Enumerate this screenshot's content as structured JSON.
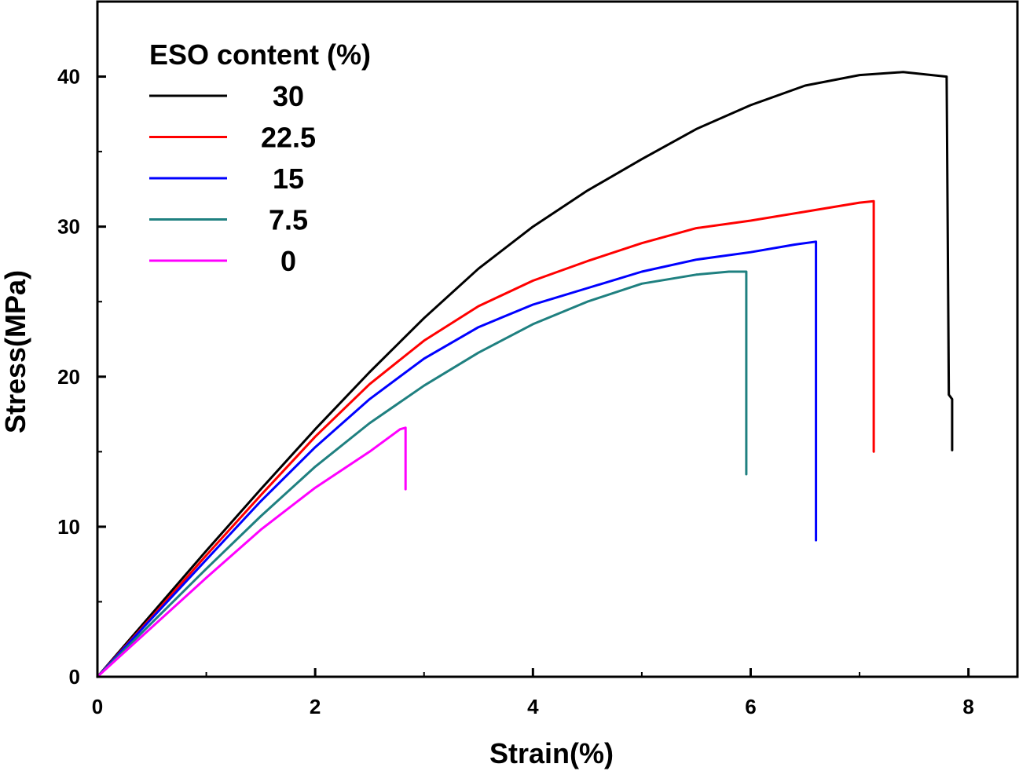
{
  "chart_data": {
    "type": "line",
    "xlabel": "Strain(%)",
    "ylabel": "Stress(MPa)",
    "xlim": [
      0,
      8.45
    ],
    "ylim": [
      0,
      45
    ],
    "x_ticks": [
      0,
      2,
      4,
      6,
      8
    ],
    "y_ticks": [
      0,
      10,
      20,
      30,
      40
    ],
    "grid": false,
    "legend": {
      "title": "ESO content (%)",
      "position": "top-left"
    },
    "series": [
      {
        "name": "30",
        "color": "#000000",
        "points": [
          [
            0,
            0
          ],
          [
            0.5,
            4.2
          ],
          [
            1,
            8.4
          ],
          [
            1.5,
            12.5
          ],
          [
            2,
            16.5
          ],
          [
            2.5,
            20.3
          ],
          [
            3,
            23.9
          ],
          [
            3.5,
            27.2
          ],
          [
            4,
            30.0
          ],
          [
            4.5,
            32.4
          ],
          [
            5,
            34.5
          ],
          [
            5.5,
            36.5
          ],
          [
            6,
            38.1
          ],
          [
            6.5,
            39.4
          ],
          [
            7,
            40.1
          ],
          [
            7.4,
            40.3
          ],
          [
            7.8,
            40.0
          ],
          [
            7.82,
            18.8
          ],
          [
            7.85,
            18.5
          ],
          [
            7.85,
            15.1
          ]
        ]
      },
      {
        "name": "22.5",
        "color": "#ff0000",
        "points": [
          [
            0,
            0
          ],
          [
            0.5,
            4.0
          ],
          [
            1,
            8.1
          ],
          [
            1.5,
            12.1
          ],
          [
            2,
            16.0
          ],
          [
            2.5,
            19.5
          ],
          [
            3,
            22.4
          ],
          [
            3.5,
            24.7
          ],
          [
            4,
            26.4
          ],
          [
            4.5,
            27.7
          ],
          [
            5,
            28.9
          ],
          [
            5.5,
            29.9
          ],
          [
            6,
            30.4
          ],
          [
            6.5,
            31.0
          ],
          [
            7,
            31.6
          ],
          [
            7.13,
            31.7
          ],
          [
            7.13,
            15.0
          ]
        ]
      },
      {
        "name": "15",
        "color": "#0000ff",
        "points": [
          [
            0,
            0
          ],
          [
            0.5,
            3.9
          ],
          [
            1,
            7.8
          ],
          [
            1.5,
            11.7
          ],
          [
            2,
            15.3
          ],
          [
            2.5,
            18.5
          ],
          [
            3,
            21.2
          ],
          [
            3.5,
            23.3
          ],
          [
            4,
            24.8
          ],
          [
            4.5,
            25.9
          ],
          [
            5,
            27.0
          ],
          [
            5.5,
            27.8
          ],
          [
            6,
            28.3
          ],
          [
            6.4,
            28.8
          ],
          [
            6.6,
            29.0
          ],
          [
            6.6,
            9.1
          ]
        ]
      },
      {
        "name": "7.5",
        "color": "#1f8080",
        "points": [
          [
            0,
            0
          ],
          [
            0.5,
            3.6
          ],
          [
            1,
            7.2
          ],
          [
            1.5,
            10.7
          ],
          [
            2,
            14.0
          ],
          [
            2.5,
            16.9
          ],
          [
            3,
            19.4
          ],
          [
            3.5,
            21.6
          ],
          [
            4,
            23.5
          ],
          [
            4.5,
            25.0
          ],
          [
            5,
            26.2
          ],
          [
            5.5,
            26.8
          ],
          [
            5.8,
            27.0
          ],
          [
            5.96,
            27.0
          ],
          [
            5.96,
            13.5
          ]
        ]
      },
      {
        "name": "0",
        "color": "#ff00ff",
        "points": [
          [
            0,
            0
          ],
          [
            0.5,
            3.3
          ],
          [
            1,
            6.6
          ],
          [
            1.5,
            9.8
          ],
          [
            2,
            12.6
          ],
          [
            2.5,
            15.0
          ],
          [
            2.78,
            16.5
          ],
          [
            2.83,
            16.6
          ],
          [
            2.83,
            12.5
          ]
        ]
      }
    ]
  }
}
